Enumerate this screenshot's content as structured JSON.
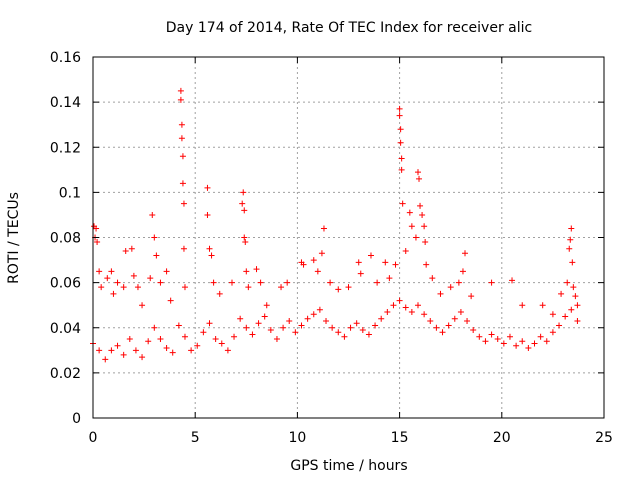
{
  "chart_data": {
    "type": "scatter",
    "title": "Day 174 of 2014, Rate Of TEC Index for receiver alic",
    "xlabel": "GPS time / hours",
    "ylabel": "ROTI / TECUs",
    "xlim": [
      0,
      25
    ],
    "ylim": [
      0,
      0.16
    ],
    "grid": true,
    "marker": "plus",
    "series": [
      {
        "name": "ROTI",
        "color": "#ff0000",
        "points": [
          [
            0.05,
            0.085
          ],
          [
            0.1,
            0.08
          ],
          [
            0.15,
            0.084
          ],
          [
            0.2,
            0.078
          ],
          [
            0.3,
            0.065
          ],
          [
            0.4,
            0.058
          ],
          [
            0.7,
            0.062
          ],
          [
            0.9,
            0.065
          ],
          [
            1.0,
            0.055
          ],
          [
            1.2,
            0.06
          ],
          [
            1.5,
            0.058
          ],
          [
            1.6,
            0.074
          ],
          [
            1.9,
            0.075
          ],
          [
            2.0,
            0.063
          ],
          [
            2.2,
            0.058
          ],
          [
            2.4,
            0.05
          ],
          [
            2.8,
            0.062
          ],
          [
            2.9,
            0.09
          ],
          [
            3.0,
            0.08
          ],
          [
            3.1,
            0.072
          ],
          [
            3.3,
            0.06
          ],
          [
            3.6,
            0.065
          ],
          [
            3.8,
            0.052
          ],
          [
            4.3,
            0.145
          ],
          [
            4.3,
            0.141
          ],
          [
            4.35,
            0.13
          ],
          [
            4.35,
            0.124
          ],
          [
            4.4,
            0.116
          ],
          [
            4.4,
            0.104
          ],
          [
            4.45,
            0.095
          ],
          [
            4.45,
            0.075
          ],
          [
            4.5,
            0.058
          ],
          [
            5.6,
            0.102
          ],
          [
            5.6,
            0.09
          ],
          [
            5.7,
            0.075
          ],
          [
            5.8,
            0.072
          ],
          [
            5.9,
            0.06
          ],
          [
            6.2,
            0.055
          ],
          [
            6.8,
            0.06
          ],
          [
            7.3,
            0.095
          ],
          [
            7.35,
            0.1
          ],
          [
            7.4,
            0.092
          ],
          [
            7.4,
            0.08
          ],
          [
            7.45,
            0.078
          ],
          [
            7.5,
            0.065
          ],
          [
            7.6,
            0.058
          ],
          [
            8.0,
            0.066
          ],
          [
            8.2,
            0.06
          ],
          [
            8.5,
            0.05
          ],
          [
            9.2,
            0.058
          ],
          [
            9.5,
            0.06
          ],
          [
            10.2,
            0.069
          ],
          [
            10.3,
            0.068
          ],
          [
            10.8,
            0.07
          ],
          [
            11.0,
            0.065
          ],
          [
            11.2,
            0.073
          ],
          [
            11.3,
            0.084
          ],
          [
            11.6,
            0.06
          ],
          [
            12.0,
            0.057
          ],
          [
            12.5,
            0.058
          ],
          [
            13.0,
            0.069
          ],
          [
            13.1,
            0.064
          ],
          [
            13.6,
            0.072
          ],
          [
            13.9,
            0.06
          ],
          [
            14.3,
            0.069
          ],
          [
            14.5,
            0.062
          ],
          [
            14.8,
            0.068
          ],
          [
            15.0,
            0.137
          ],
          [
            15.0,
            0.134
          ],
          [
            15.05,
            0.128
          ],
          [
            15.05,
            0.122
          ],
          [
            15.1,
            0.115
          ],
          [
            15.1,
            0.11
          ],
          [
            15.15,
            0.095
          ],
          [
            15.3,
            0.074
          ],
          [
            15.5,
            0.091
          ],
          [
            15.6,
            0.085
          ],
          [
            15.8,
            0.08
          ],
          [
            15.9,
            0.109
          ],
          [
            15.95,
            0.106
          ],
          [
            16.0,
            0.094
          ],
          [
            16.1,
            0.09
          ],
          [
            16.2,
            0.085
          ],
          [
            16.25,
            0.078
          ],
          [
            16.3,
            0.068
          ],
          [
            16.6,
            0.062
          ],
          [
            17.0,
            0.055
          ],
          [
            17.5,
            0.058
          ],
          [
            17.9,
            0.06
          ],
          [
            18.1,
            0.065
          ],
          [
            18.2,
            0.073
          ],
          [
            18.5,
            0.054
          ],
          [
            19.5,
            0.06
          ],
          [
            20.5,
            0.061
          ],
          [
            21.0,
            0.05
          ],
          [
            22.0,
            0.05
          ],
          [
            22.5,
            0.046
          ],
          [
            22.9,
            0.055
          ],
          [
            23.2,
            0.06
          ],
          [
            23.3,
            0.075
          ],
          [
            23.35,
            0.079
          ],
          [
            23.4,
            0.084
          ],
          [
            23.45,
            0.069
          ],
          [
            23.5,
            0.058
          ],
          [
            23.6,
            0.054
          ],
          [
            23.7,
            0.05
          ],
          [
            0.0,
            0.033
          ],
          [
            0.3,
            0.03
          ],
          [
            0.6,
            0.026
          ],
          [
            0.9,
            0.03
          ],
          [
            1.2,
            0.032
          ],
          [
            1.5,
            0.028
          ],
          [
            1.8,
            0.035
          ],
          [
            2.1,
            0.03
          ],
          [
            2.4,
            0.027
          ],
          [
            2.7,
            0.034
          ],
          [
            3.0,
            0.04
          ],
          [
            3.3,
            0.035
          ],
          [
            3.6,
            0.031
          ],
          [
            3.9,
            0.029
          ],
          [
            4.2,
            0.041
          ],
          [
            4.5,
            0.036
          ],
          [
            4.8,
            0.03
          ],
          [
            5.1,
            0.032
          ],
          [
            5.4,
            0.038
          ],
          [
            5.7,
            0.042
          ],
          [
            6.0,
            0.035
          ],
          [
            6.3,
            0.033
          ],
          [
            6.6,
            0.03
          ],
          [
            6.9,
            0.036
          ],
          [
            7.2,
            0.044
          ],
          [
            7.5,
            0.04
          ],
          [
            7.8,
            0.037
          ],
          [
            8.1,
            0.042
          ],
          [
            8.4,
            0.045
          ],
          [
            8.7,
            0.039
          ],
          [
            9.0,
            0.035
          ],
          [
            9.3,
            0.04
          ],
          [
            9.6,
            0.043
          ],
          [
            9.9,
            0.038
          ],
          [
            10.2,
            0.041
          ],
          [
            10.5,
            0.044
          ],
          [
            10.8,
            0.046
          ],
          [
            11.1,
            0.048
          ],
          [
            11.4,
            0.043
          ],
          [
            11.7,
            0.04
          ],
          [
            12.0,
            0.038
          ],
          [
            12.3,
            0.036
          ],
          [
            12.6,
            0.04
          ],
          [
            12.9,
            0.042
          ],
          [
            13.2,
            0.039
          ],
          [
            13.5,
            0.037
          ],
          [
            13.8,
            0.041
          ],
          [
            14.1,
            0.044
          ],
          [
            14.4,
            0.047
          ],
          [
            14.7,
            0.05
          ],
          [
            15.0,
            0.052
          ],
          [
            15.3,
            0.049
          ],
          [
            15.6,
            0.047
          ],
          [
            15.9,
            0.05
          ],
          [
            16.2,
            0.046
          ],
          [
            16.5,
            0.043
          ],
          [
            16.8,
            0.04
          ],
          [
            17.1,
            0.038
          ],
          [
            17.4,
            0.041
          ],
          [
            17.7,
            0.044
          ],
          [
            18.0,
            0.047
          ],
          [
            18.3,
            0.043
          ],
          [
            18.6,
            0.039
          ],
          [
            18.9,
            0.036
          ],
          [
            19.2,
            0.034
          ],
          [
            19.5,
            0.037
          ],
          [
            19.8,
            0.035
          ],
          [
            20.1,
            0.033
          ],
          [
            20.4,
            0.036
          ],
          [
            20.7,
            0.032
          ],
          [
            21.0,
            0.034
          ],
          [
            21.3,
            0.031
          ],
          [
            21.6,
            0.033
          ],
          [
            21.9,
            0.036
          ],
          [
            22.2,
            0.034
          ],
          [
            22.5,
            0.038
          ],
          [
            22.8,
            0.041
          ],
          [
            23.1,
            0.045
          ],
          [
            23.4,
            0.048
          ],
          [
            23.7,
            0.043
          ]
        ]
      }
    ]
  }
}
